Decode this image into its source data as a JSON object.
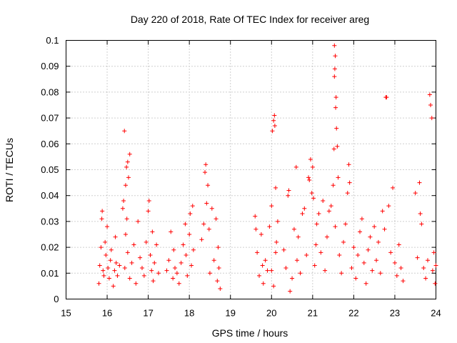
{
  "chart_data": {
    "type": "scatter",
    "title": "Day 220 of 2018, Rate Of TEC Index for receiver areg",
    "xlabel": "GPS time / hours",
    "ylabel": "ROTI / TECUs",
    "xlim": [
      15,
      24
    ],
    "ylim": [
      0,
      0.1
    ],
    "x_ticks": [
      "15",
      "16",
      "17",
      "18",
      "19",
      "20",
      "21",
      "22",
      "23",
      "24"
    ],
    "y_ticks": [
      "0",
      "0.01",
      "0.02",
      "0.03",
      "0.04",
      "0.05",
      "0.06",
      "0.07",
      "0.08",
      "0.09",
      "0.1"
    ],
    "grid": true,
    "legend": "none",
    "marker": "plus",
    "color": "#ff0000",
    "series": [
      {
        "points": [
          [
            15.8,
            0.006
          ],
          [
            15.82,
            0.013
          ],
          [
            15.85,
            0.02
          ],
          [
            15.87,
            0.031
          ],
          [
            15.88,
            0.034
          ],
          [
            15.9,
            0.011
          ],
          [
            15.92,
            0.009
          ],
          [
            15.95,
            0.022
          ],
          [
            15.97,
            0.017
          ],
          [
            16.0,
            0.028
          ],
          [
            16.02,
            0.012
          ],
          [
            16.05,
            0.008
          ],
          [
            16.08,
            0.015
          ],
          [
            16.1,
            0.019
          ],
          [
            16.15,
            0.005
          ],
          [
            16.18,
            0.011
          ],
          [
            16.2,
            0.024
          ],
          [
            16.22,
            0.014
          ],
          [
            16.25,
            0.009
          ],
          [
            16.3,
            0.013
          ],
          [
            16.38,
            0.035
          ],
          [
            16.4,
            0.038
          ],
          [
            16.42,
            0.065
          ],
          [
            16.45,
            0.044
          ],
          [
            16.47,
            0.051
          ],
          [
            16.5,
            0.053
          ],
          [
            16.52,
            0.047
          ],
          [
            16.55,
            0.056
          ],
          [
            16.48,
            0.031
          ],
          [
            16.45,
            0.025
          ],
          [
            16.43,
            0.012
          ],
          [
            16.5,
            0.018
          ],
          [
            16.55,
            0.008
          ],
          [
            16.6,
            0.014
          ],
          [
            16.65,
            0.021
          ],
          [
            16.7,
            0.006
          ],
          [
            16.75,
            0.03
          ],
          [
            16.8,
            0.016
          ],
          [
            16.85,
            0.012
          ],
          [
            16.9,
            0.009
          ],
          [
            16.95,
            0.022
          ],
          [
            17.0,
            0.034
          ],
          [
            17.02,
            0.038
          ],
          [
            17.05,
            0.017
          ],
          [
            17.08,
            0.011
          ],
          [
            17.1,
            0.026
          ],
          [
            17.12,
            0.007
          ],
          [
            17.15,
            0.014
          ],
          [
            17.2,
            0.021
          ],
          [
            17.25,
            0.01
          ],
          [
            17.45,
            0.011
          ],
          [
            17.5,
            0.015
          ],
          [
            17.55,
            0.026
          ],
          [
            17.6,
            0.008
          ],
          [
            17.62,
            0.019
          ],
          [
            17.65,
            0.012
          ],
          [
            17.7,
            0.01
          ],
          [
            17.75,
            0.006
          ],
          [
            17.8,
            0.014
          ],
          [
            17.85,
            0.021
          ],
          [
            17.9,
            0.029
          ],
          [
            17.92,
            0.017
          ],
          [
            17.95,
            0.009
          ],
          [
            18.0,
            0.025
          ],
          [
            18.02,
            0.033
          ],
          [
            18.05,
            0.013
          ],
          [
            18.08,
            0.036
          ],
          [
            18.1,
            0.019
          ],
          [
            18.3,
            0.023
          ],
          [
            18.35,
            0.029
          ],
          [
            18.38,
            0.049
          ],
          [
            18.4,
            0.052
          ],
          [
            18.42,
            0.037
          ],
          [
            18.45,
            0.044
          ],
          [
            18.48,
            0.027
          ],
          [
            18.5,
            0.01
          ],
          [
            18.55,
            0.035
          ],
          [
            18.6,
            0.015
          ],
          [
            18.65,
            0.031
          ],
          [
            18.68,
            0.007
          ],
          [
            18.7,
            0.02
          ],
          [
            18.72,
            0.012
          ],
          [
            18.75,
            0.004
          ],
          [
            19.6,
            0.032
          ],
          [
            19.62,
            0.027
          ],
          [
            19.65,
            0.018
          ],
          [
            19.7,
            0.009
          ],
          [
            19.75,
            0.025
          ],
          [
            19.78,
            0.013
          ],
          [
            19.8,
            0.006
          ],
          [
            19.85,
            0.015
          ],
          [
            19.9,
            0.011
          ],
          [
            19.95,
            0.028
          ],
          [
            20.0,
            0.036
          ],
          [
            20.02,
            0.065
          ],
          [
            20.05,
            0.069
          ],
          [
            20.07,
            0.071
          ],
          [
            20.08,
            0.067
          ],
          [
            20.1,
            0.043
          ],
          [
            20.12,
            0.022
          ],
          [
            20.0,
            0.011
          ],
          [
            20.05,
            0.005
          ],
          [
            20.1,
            0.018
          ],
          [
            20.15,
            0.03
          ],
          [
            20.3,
            0.019
          ],
          [
            20.35,
            0.012
          ],
          [
            20.4,
            0.04
          ],
          [
            20.42,
            0.042
          ],
          [
            20.45,
            0.003
          ],
          [
            20.5,
            0.008
          ],
          [
            20.55,
            0.027
          ],
          [
            20.6,
            0.051
          ],
          [
            20.62,
            0.015
          ],
          [
            20.65,
            0.024
          ],
          [
            20.7,
            0.01
          ],
          [
            20.75,
            0.033
          ],
          [
            20.8,
            0.035
          ],
          [
            20.85,
            0.017
          ],
          [
            20.9,
            0.047
          ],
          [
            20.92,
            0.046
          ],
          [
            20.95,
            0.054
          ],
          [
            20.98,
            0.041
          ],
          [
            21.0,
            0.051
          ],
          [
            21.02,
            0.039
          ],
          [
            21.05,
            0.013
          ],
          [
            21.08,
            0.021
          ],
          [
            21.1,
            0.029
          ],
          [
            21.15,
            0.033
          ],
          [
            21.2,
            0.018
          ],
          [
            21.25,
            0.038
          ],
          [
            21.3,
            0.011
          ],
          [
            21.35,
            0.024
          ],
          [
            21.4,
            0.034
          ],
          [
            21.45,
            0.036
          ],
          [
            21.5,
            0.044
          ],
          [
            21.52,
            0.058
          ],
          [
            21.53,
            0.098
          ],
          [
            21.55,
            0.094
          ],
          [
            21.54,
            0.089
          ],
          [
            21.53,
            0.086
          ],
          [
            21.57,
            0.078
          ],
          [
            21.58,
            0.066
          ],
          [
            21.56,
            0.074
          ],
          [
            21.6,
            0.059
          ],
          [
            21.62,
            0.047
          ],
          [
            21.55,
            0.028
          ],
          [
            21.65,
            0.017
          ],
          [
            21.7,
            0.01
          ],
          [
            21.75,
            0.022
          ],
          [
            21.8,
            0.029
          ],
          [
            21.85,
            0.041
          ],
          [
            21.88,
            0.052
          ],
          [
            21.9,
            0.045
          ],
          [
            21.95,
            0.012
          ],
          [
            22.0,
            0.02
          ],
          [
            22.05,
            0.008
          ],
          [
            22.1,
            0.017
          ],
          [
            22.15,
            0.026
          ],
          [
            22.2,
            0.031
          ],
          [
            22.25,
            0.014
          ],
          [
            22.3,
            0.006
          ],
          [
            22.35,
            0.019
          ],
          [
            22.4,
            0.024
          ],
          [
            22.45,
            0.011
          ],
          [
            22.5,
            0.028
          ],
          [
            22.55,
            0.015
          ],
          [
            22.6,
            0.022
          ],
          [
            22.65,
            0.01
          ],
          [
            22.7,
            0.034
          ],
          [
            22.75,
            0.027
          ],
          [
            22.78,
            0.078
          ],
          [
            22.8,
            0.078
          ],
          [
            22.85,
            0.036
          ],
          [
            22.9,
            0.018
          ],
          [
            22.95,
            0.043
          ],
          [
            23.0,
            0.014
          ],
          [
            23.05,
            0.009
          ],
          [
            23.1,
            0.021
          ],
          [
            23.15,
            0.012
          ],
          [
            23.2,
            0.007
          ],
          [
            23.5,
            0.041
          ],
          [
            23.55,
            0.016
          ],
          [
            23.6,
            0.045
          ],
          [
            23.62,
            0.033
          ],
          [
            23.65,
            0.029
          ],
          [
            23.7,
            0.012
          ],
          [
            23.75,
            0.008
          ],
          [
            23.8,
            0.015
          ],
          [
            23.85,
            0.079
          ],
          [
            23.87,
            0.075
          ],
          [
            23.9,
            0.07
          ],
          [
            23.92,
            0.011
          ],
          [
            23.95,
            0.018
          ],
          [
            23.98,
            0.006
          ],
          [
            24.0,
            0.013
          ]
        ]
      }
    ]
  }
}
